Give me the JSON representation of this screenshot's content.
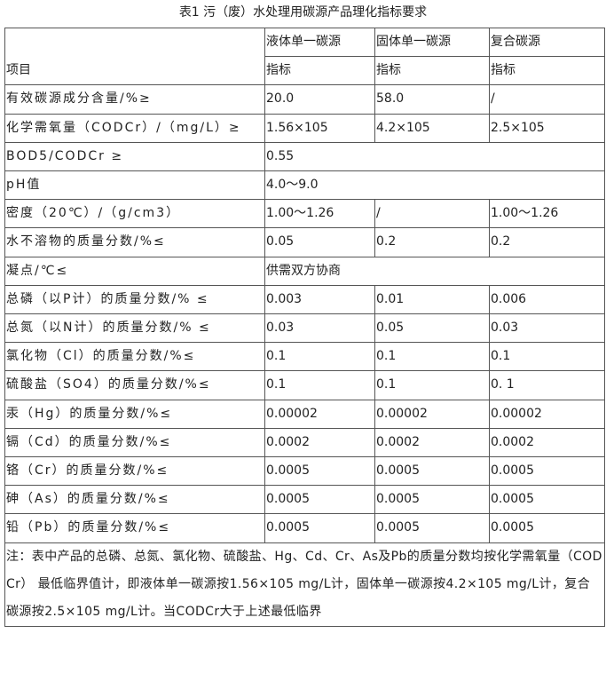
{
  "title": "表1 污（废）水处理用碳源产品理化指标要求",
  "table": {
    "header": {
      "item": "项目",
      "columns": [
        "液体单一碳源",
        "固体单一碳源",
        "复合碳源"
      ],
      "sub": [
        "指标",
        "指标",
        "指标"
      ]
    },
    "rows": [
      [
        "有效碳源成分含量/%≥",
        "20.0",
        "58.0",
        "/"
      ],
      [
        "化学需氧量（CODCr）/（mg/L）≥",
        "1.56×105",
        "4.2×105",
        "2.5×105"
      ],
      [
        "BOD5/CODCr ≥",
        "0.55"
      ],
      [
        "pH值",
        "4.0～9.0"
      ],
      [
        "密度（20℃）/（g/cm3）",
        "1.00～1.26",
        "/",
        "1.00～1.26"
      ],
      [
        "水不溶物的质量分数/%≤",
        "0.05",
        "0.2",
        "0.2"
      ],
      [
        "凝点/℃≤",
        "供需双方协商"
      ],
      [
        "总磷（以P计）的质量分数/% ≤",
        "0.003",
        "0.01",
        "0.006"
      ],
      [
        "总氮（以N计）的质量分数/% ≤",
        "0.03",
        "0.05",
        "0.03"
      ],
      [
        "氯化物（Cl）的质量分数/%≤",
        "0.1",
        "0.1",
        "0.1"
      ],
      [
        "硫酸盐（SO4）的质量分数/%≤",
        "0.1",
        "0.1",
        "0. 1"
      ],
      [
        "汞（Hg）的质量分数/%≤",
        "0.00002",
        "0.00002",
        "0.00002"
      ],
      [
        "镉（Cd）的质量分数/%≤",
        "0.0002",
        "0.0002",
        "0.0002"
      ],
      [
        "铬（Cr）的质量分数/%≤",
        "0.0005",
        "0.0005",
        "0.0005"
      ],
      [
        "砷（As）的质量分数/%≤",
        "0.0005",
        "0.0005",
        "0.0005"
      ],
      [
        "铅（Pb）的质量分数/%≤",
        "0.0005",
        "0.0005",
        "0.0005"
      ]
    ],
    "note": "注：表中产品的总磷、总氮、氯化物、硫酸盐、Hg、Cd、Cr、As及Pb的质量分数均按化学需氧量（CODCr） 最低临界值计，即液体单一碳源按1.56×105 mg/L计，固体单一碳源按4.2×105 mg/L计，复合碳源按2.5×105 mg/L计。当CODCr大于上述最低临界"
  }
}
